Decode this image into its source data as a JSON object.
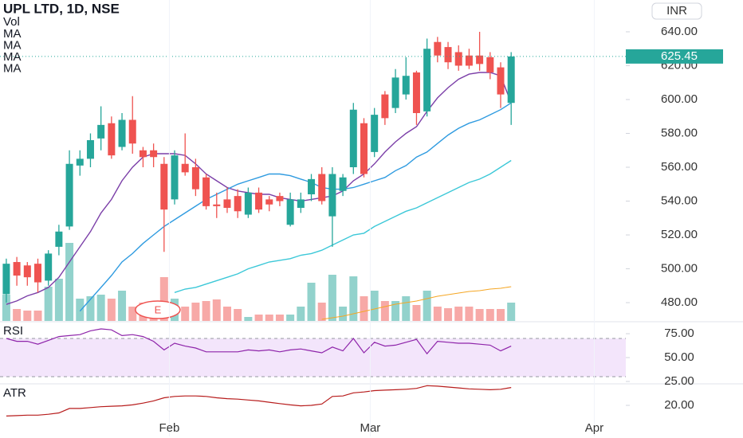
{
  "chart_data": {
    "type": "candlestick",
    "title": "UPL LTD, 1D, NSE",
    "currency": "INR",
    "open": [
      485,
      504,
      502,
      503,
      493,
      513,
      525,
      561,
      565,
      577,
      586,
      572,
      588,
      570,
      570,
      562,
      541,
      562,
      560,
      554,
      538,
      541,
      543,
      532,
      545,
      541,
      543,
      526,
      536,
      544,
      556,
      531,
      546,
      560,
      586,
      569,
      603,
      595,
      603,
      616,
      593,
      634,
      631,
      628,
      626,
      626,
      625,
      619,
      598
    ],
    "high": [
      506,
      507,
      504,
      506,
      511,
      526,
      570,
      570,
      580,
      596,
      590,
      592,
      602,
      572,
      574,
      566,
      570,
      580,
      565,
      556,
      545,
      548,
      547,
      548,
      548,
      543,
      545,
      545,
      545,
      556,
      560,
      560,
      556,
      598,
      589,
      595,
      605,
      618,
      625,
      617,
      636,
      637,
      634,
      632,
      630,
      640,
      628,
      622,
      628
    ],
    "low": [
      480,
      490,
      490,
      486,
      490,
      508,
      523,
      555,
      560,
      570,
      565,
      570,
      568,
      560,
      560,
      510,
      538,
      555,
      543,
      535,
      530,
      533,
      530,
      530,
      533,
      534,
      537,
      525,
      533,
      540,
      538,
      513,
      543,
      556,
      554,
      566,
      585,
      592,
      600,
      585,
      590,
      622,
      618,
      617,
      618,
      617,
      612,
      595,
      585
    ],
    "close": [
      503,
      496,
      495,
      492,
      509,
      522,
      562,
      565,
      576,
      585,
      567,
      588,
      574,
      566,
      566,
      535,
      567,
      557,
      547,
      537,
      537,
      536,
      534,
      545,
      535,
      538,
      540,
      541,
      541,
      553,
      540,
      556,
      554,
      594,
      556,
      591,
      589,
      613,
      614,
      592,
      630,
      626,
      622,
      620,
      620,
      621,
      616,
      603,
      625.45
    ],
    "colors": {
      "up": "#26a69a",
      "down": "#ef5350"
    },
    "xlim": [
      -0.6,
      58.9
    ],
    "xticks": [
      {
        "value": 15.5,
        "label": "Feb"
      },
      {
        "value": 34.6,
        "label": "Mar"
      },
      {
        "value": 55.9,
        "label": "Apr"
      }
    ],
    "ylim": [
      469.2,
      658.8
    ],
    "yticks": [
      {
        "value": 480,
        "label": "480.00"
      },
      {
        "value": 500,
        "label": "500.00"
      },
      {
        "value": 520,
        "label": "520.00"
      },
      {
        "value": 540,
        "label": "540.00"
      },
      {
        "value": 560,
        "label": "560.00"
      },
      {
        "value": 580,
        "label": "580.00"
      },
      {
        "value": 600,
        "label": "600.00"
      },
      {
        "value": 620,
        "label": "620.00"
      },
      {
        "value": 640,
        "label": "640.00"
      }
    ],
    "last_price": 625.45,
    "ma_series": [
      {
        "name": "MA",
        "color": "#7b3fa8",
        "values": [
          479,
          481,
          484,
          486,
          489,
          495,
          504,
          513,
          522,
          533,
          541,
          552,
          560,
          566,
          568,
          568,
          568,
          567,
          562,
          556,
          552,
          548,
          546,
          545,
          544,
          544,
          542,
          541,
          540,
          541,
          542,
          543,
          546,
          552,
          556,
          562,
          569,
          575,
          580,
          584,
          593,
          601,
          607,
          612,
          615,
          616,
          616,
          614,
          598
        ]
      },
      {
        "name": "MA",
        "color": "#2f9be0",
        "values": [
          null,
          null,
          null,
          null,
          null,
          null,
          null,
          475,
          482,
          489,
          496,
          504,
          509,
          515,
          520,
          525,
          529,
          533,
          537,
          541,
          544,
          547,
          550,
          552,
          554,
          556,
          556,
          555,
          553,
          551,
          548,
          547,
          547,
          548,
          550,
          552,
          554,
          558,
          561,
          566,
          569,
          574,
          579,
          583,
          586,
          588,
          591,
          594,
          598
        ]
      },
      {
        "name": "MA",
        "color": "#3cc8d8",
        "values": [
          null,
          null,
          null,
          null,
          null,
          null,
          null,
          null,
          null,
          null,
          null,
          null,
          null,
          null,
          null,
          null,
          486,
          488,
          489,
          491,
          493,
          495,
          497,
          500,
          502,
          504,
          505,
          506,
          508,
          509,
          511,
          514,
          517,
          520,
          521,
          525,
          528,
          531,
          534,
          536,
          539,
          542,
          545,
          548,
          551,
          553,
          556,
          560,
          564
        ]
      }
    ],
    "volume": {
      "name": "Vol",
      "ylim": [
        0,
        403
      ],
      "values": [
        33,
        15,
        13,
        13,
        43,
        53,
        98,
        28,
        31,
        33,
        28,
        38,
        18,
        23,
        8,
        55,
        28,
        18,
        23,
        25,
        27,
        18,
        15,
        5,
        8,
        8,
        8,
        8,
        18,
        48,
        23,
        58,
        18,
        56,
        31,
        38,
        25,
        25,
        31,
        20,
        38,
        18,
        16,
        18,
        18,
        15,
        15,
        15,
        23
      ],
      "ma": {
        "name": "MA",
        "color": "#f5a623",
        "values": [
          null,
          null,
          null,
          null,
          null,
          null,
          null,
          null,
          null,
          null,
          null,
          null,
          null,
          null,
          null,
          null,
          null,
          null,
          null,
          null,
          null,
          null,
          null,
          null,
          null,
          null,
          null,
          null,
          null,
          null,
          2,
          4,
          6,
          9,
          12,
          15,
          18,
          21,
          23,
          25,
          28,
          31,
          33,
          35,
          37,
          38,
          40,
          41,
          43
        ]
      }
    },
    "earnings": {
      "label": "E",
      "x": 14.4
    },
    "rsi": {
      "name": "RSI",
      "color": "#8e24aa",
      "band": [
        30,
        70
      ],
      "ylim": [
        22.5,
        86.7
      ],
      "yticks": [
        {
          "value": 75,
          "label": "75.00"
        },
        {
          "value": 50,
          "label": "50.00"
        },
        {
          "value": 25,
          "label": "25.00"
        }
      ],
      "values": [
        70,
        67,
        67,
        64,
        68,
        72,
        73,
        74,
        78,
        80,
        79,
        73,
        74,
        72,
        67,
        58,
        65,
        62,
        60,
        56,
        56,
        56,
        56,
        58,
        57,
        58,
        56,
        58,
        59,
        57,
        55,
        61,
        57,
        70,
        55,
        66,
        62,
        63,
        66,
        69,
        54,
        67,
        66,
        65,
        65,
        64,
        63,
        57,
        62
      ]
    },
    "atr": {
      "name": "ATR",
      "color": "#b71c1c",
      "ylim": [
        13.04,
        24.64
      ],
      "yticks": [
        {
          "value": 20,
          "label": "20.00"
        }
      ],
      "values": [
        17.6,
        17.7,
        17.8,
        17.8,
        18.0,
        18.3,
        19.3,
        19.3,
        19.5,
        19.7,
        19.8,
        19.9,
        20.1,
        20.5,
        21.0,
        21.7,
        22.0,
        22.1,
        22.1,
        22.0,
        21.7,
        21.5,
        21.4,
        21.2,
        21.0,
        20.7,
        20.4,
        20.1,
        19.9,
        20.0,
        20.3,
        22.0,
        22.1,
        22.8,
        23.0,
        23.3,
        23.4,
        23.5,
        23.6,
        23.8,
        24.4,
        24.3,
        24.1,
        23.9,
        23.7,
        23.6,
        23.5,
        23.6,
        24.0
      ]
    }
  }
}
